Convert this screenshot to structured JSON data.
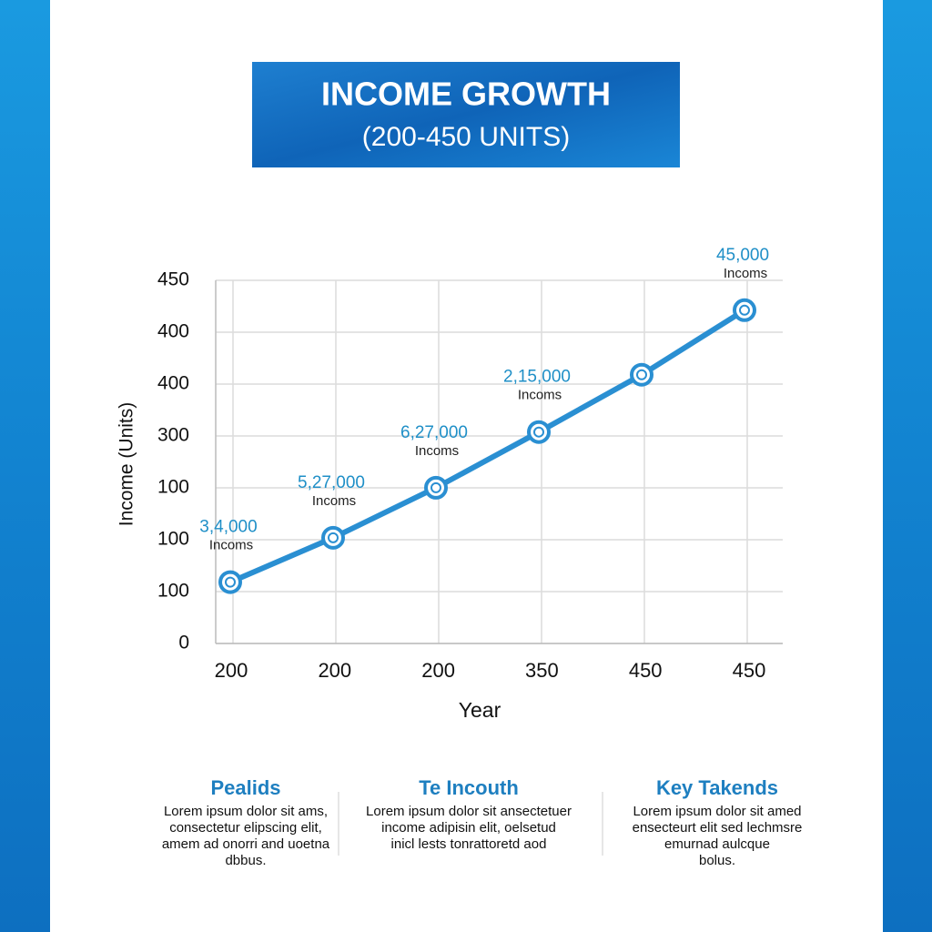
{
  "chart_data": {
    "type": "line",
    "title": "INCOME GROWTH",
    "subtitle": "(200-450 UNITS)",
    "y_label": "Income (Units)",
    "x_label": "Year",
    "categories": [
      "200",
      "200",
      "200",
      "350",
      "450",
      "450"
    ],
    "series": [
      {
        "name": "Income",
        "color": "#2a8fd2",
        "values": [
          76,
          131,
          193,
          262,
          333,
          413
        ]
      }
    ],
    "point_labels": [
      {
        "text": "3,4,000",
        "caption": "Incoms"
      },
      {
        "text": "5,27,000",
        "caption": "Incoms"
      },
      {
        "text": "6,27,000",
        "caption": "Incoms"
      },
      {
        "text": "2,15,000",
        "caption": "Incoms"
      },
      null,
      {
        "text": "45,000",
        "caption": "Incoms"
      }
    ],
    "ylim": [
      0,
      450
    ],
    "yticks": [
      0,
      {
        "value": 64.3,
        "label": "100"
      },
      {
        "value": 128.6,
        "label": "100"
      },
      {
        "value": 192.9,
        "label": "100"
      },
      {
        "value": 257.1,
        "label": "300"
      },
      {
        "value": 321.4,
        "label": "400"
      },
      {
        "value": 385.7,
        "label": "400"
      },
      450
    ],
    "grid": true
  },
  "columns": [
    {
      "heading": "Pealids",
      "lines": [
        "Lorem ipsum dolor sit ams,",
        "consectetur elipscing elit,",
        "amem ad onorri and uoetna",
        "dbbus."
      ]
    },
    {
      "heading": "Te Incouth",
      "lines": [
        "Lorem ipsum dolor sit ansectetuer",
        "income adipisin elit, oelsetud",
        "inicl lests tonrattoretd aod"
      ]
    },
    {
      "heading": "Key Takends",
      "lines": [
        "Lorem ipsum dolor sit amed",
        "ensecteurt elit sed lechmsre",
        "emurnad aulcque",
        "bolus."
      ]
    }
  ]
}
